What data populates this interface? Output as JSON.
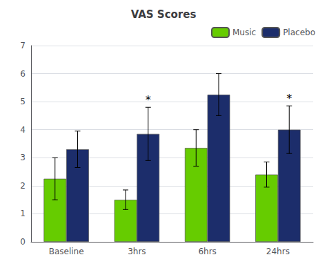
{
  "chart_data": {
    "type": "bar",
    "title": "VAS Scores",
    "categories": [
      "Baseline",
      "3hrs",
      "6hrs",
      "24hrs"
    ],
    "series": [
      {
        "name": "Music",
        "color": "#66cc00",
        "values": [
          2.25,
          1.5,
          3.35,
          2.4
        ],
        "errors": [
          0.75,
          0.35,
          0.65,
          0.45
        ]
      },
      {
        "name": "Placebo",
        "color": "#1c2d6b",
        "values": [
          3.3,
          3.85,
          5.25,
          4.0
        ],
        "errors": [
          0.65,
          0.95,
          0.75,
          0.85
        ]
      }
    ],
    "annotations": [
      {
        "text": "*",
        "category": "3hrs",
        "series": "Placebo"
      },
      {
        "text": "*",
        "category": "24hrs",
        "series": "Placebo"
      }
    ],
    "ylim": [
      0,
      7
    ],
    "yticks": [
      0,
      1,
      2,
      3,
      4,
      5,
      6,
      7
    ],
    "grid": true,
    "legend": "upper right"
  }
}
